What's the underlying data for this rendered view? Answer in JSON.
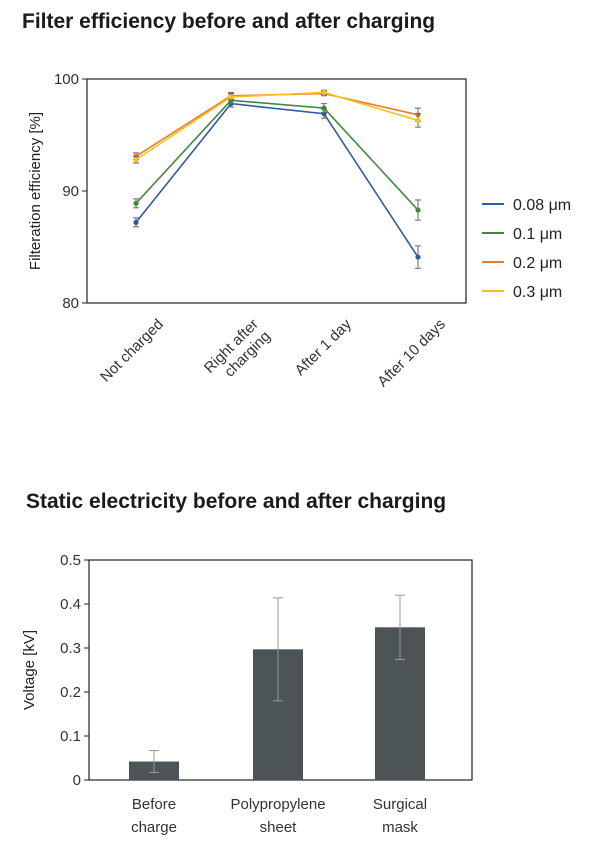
{
  "chart_data": [
    {
      "type": "line",
      "title": "Filter efficiency before and after charging",
      "ylabel": "Filteration efficiency [%]",
      "xlabel": "",
      "ylim": [
        80,
        100
      ],
      "yticks": [
        80,
        90,
        100
      ],
      "categories": [
        "Not charged",
        "Right after charging",
        "After 1 day",
        "After 10 days"
      ],
      "category_lines": [
        [
          "Not charged"
        ],
        [
          "Right after",
          "charging"
        ],
        [
          "After 1 day"
        ],
        [
          "After 10 days"
        ]
      ],
      "legend_position": "right",
      "series": [
        {
          "name": "0.08 μm",
          "color": "#2f5aa8",
          "values": [
            87.2,
            97.8,
            96.9,
            84.1
          ],
          "errors": [
            0.4,
            0.3,
            0.4,
            1.0
          ]
        },
        {
          "name": "0.1 μm",
          "color": "#3f8a3a",
          "values": [
            88.9,
            98.1,
            97.4,
            88.3
          ],
          "errors": [
            0.4,
            0.3,
            0.4,
            0.9
          ]
        },
        {
          "name": "0.2 μm",
          "color": "#f07a2a",
          "values": [
            93.1,
            98.5,
            98.7,
            96.8
          ],
          "errors": [
            0.3,
            0.3,
            0.2,
            0.6
          ]
        },
        {
          "name": "0.3 μm",
          "color": "#f6c21c",
          "values": [
            92.8,
            98.4,
            98.8,
            96.3
          ],
          "errors": [
            0.3,
            0.3,
            0.2,
            0.6
          ]
        }
      ]
    },
    {
      "type": "bar",
      "title": "Static electricity before and after charging",
      "ylabel": "Voltage [kV]",
      "xlabel": "",
      "ylim": [
        0,
        0.5
      ],
      "yticks": [
        "0",
        "0.1",
        "0.2",
        "0.3",
        "0.4",
        "0.5"
      ],
      "categories": [
        "Before charge",
        "Polypropylene sheet",
        "Surgical mask"
      ],
      "category_lines": [
        [
          "Before",
          "charge"
        ],
        [
          "Polypropylene",
          "sheet"
        ],
        [
          "Surgical",
          "mask"
        ]
      ],
      "values": [
        0.042,
        0.297,
        0.347
      ],
      "errors": [
        0.025,
        0.117,
        0.073
      ],
      "bar_color": "#4d5457"
    }
  ]
}
